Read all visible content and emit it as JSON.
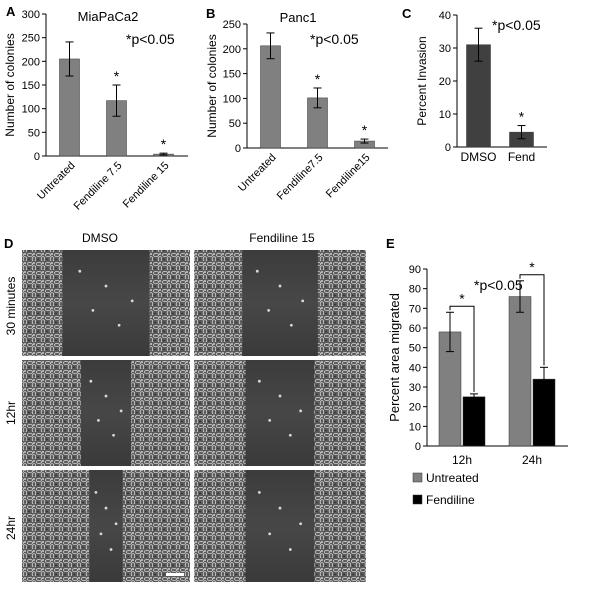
{
  "panels": {
    "A": "A",
    "B": "B",
    "C": "C",
    "D": "D",
    "E": "E"
  },
  "colors": {
    "bar_gray": "#808080",
    "bar_dark": "#404040",
    "bar_black": "#000000",
    "axis": "#000000"
  },
  "microscopy": {
    "col_labels": [
      "DMSO",
      "Fendiline 15"
    ],
    "row_labels": [
      "30 minutes",
      "12hr",
      "24hr"
    ]
  },
  "chart_data": [
    {
      "panel": "A",
      "type": "bar",
      "title": "MiaPaCa2",
      "annotation": "*p<0.05",
      "ylabel": "Number of colonies",
      "xlabel": "",
      "ylim": [
        0,
        300
      ],
      "yticks": [
        0,
        50,
        100,
        150,
        200,
        250,
        300
      ],
      "categories": [
        "Untreated",
        "Fendiline 7.5",
        "Fendiline 15"
      ],
      "values": [
        205,
        117,
        4
      ],
      "errors": [
        36,
        33,
        2
      ],
      "markers": [
        "",
        "*",
        "*"
      ]
    },
    {
      "panel": "B",
      "type": "bar",
      "title": "Panc1",
      "annotation": "*p<0.05",
      "ylabel": "Number of colonies",
      "xlabel": "",
      "ylim": [
        0,
        250
      ],
      "yticks": [
        0,
        50,
        100,
        150,
        200,
        250
      ],
      "categories": [
        "Untreated",
        "Fendiline7.5",
        "Fendiline15"
      ],
      "values": [
        206,
        101,
        14
      ],
      "errors": [
        26,
        20,
        4
      ],
      "markers": [
        "",
        "*",
        "*"
      ]
    },
    {
      "panel": "C",
      "type": "bar",
      "title": "",
      "annotation": "*p<0.05",
      "ylabel": "Percent Invasion",
      "xlabel": "",
      "ylim": [
        0,
        40
      ],
      "yticks": [
        0,
        10,
        20,
        30,
        40
      ],
      "categories": [
        "DMSO",
        "Fend"
      ],
      "values": [
        31,
        4.5
      ],
      "errors": [
        5,
        2
      ],
      "markers": [
        "",
        "*"
      ]
    },
    {
      "panel": "E",
      "type": "bar",
      "title": "",
      "annotation": "*p<0.05",
      "ylabel": "Percent area migrated",
      "xlabel": "",
      "ylim": [
        0,
        90
      ],
      "yticks": [
        0,
        10,
        20,
        30,
        40,
        50,
        60,
        70,
        80,
        90
      ],
      "categories": [
        "12h",
        "24h"
      ],
      "series": [
        {
          "name": "Untreated",
          "values": [
            58,
            76
          ],
          "errors": [
            10,
            8
          ]
        },
        {
          "name": "Fendiline",
          "values": [
            25,
            34
          ],
          "errors": [
            1.5,
            6
          ]
        }
      ],
      "significance": [
        "*",
        "*"
      ],
      "legend": "bottom"
    }
  ]
}
